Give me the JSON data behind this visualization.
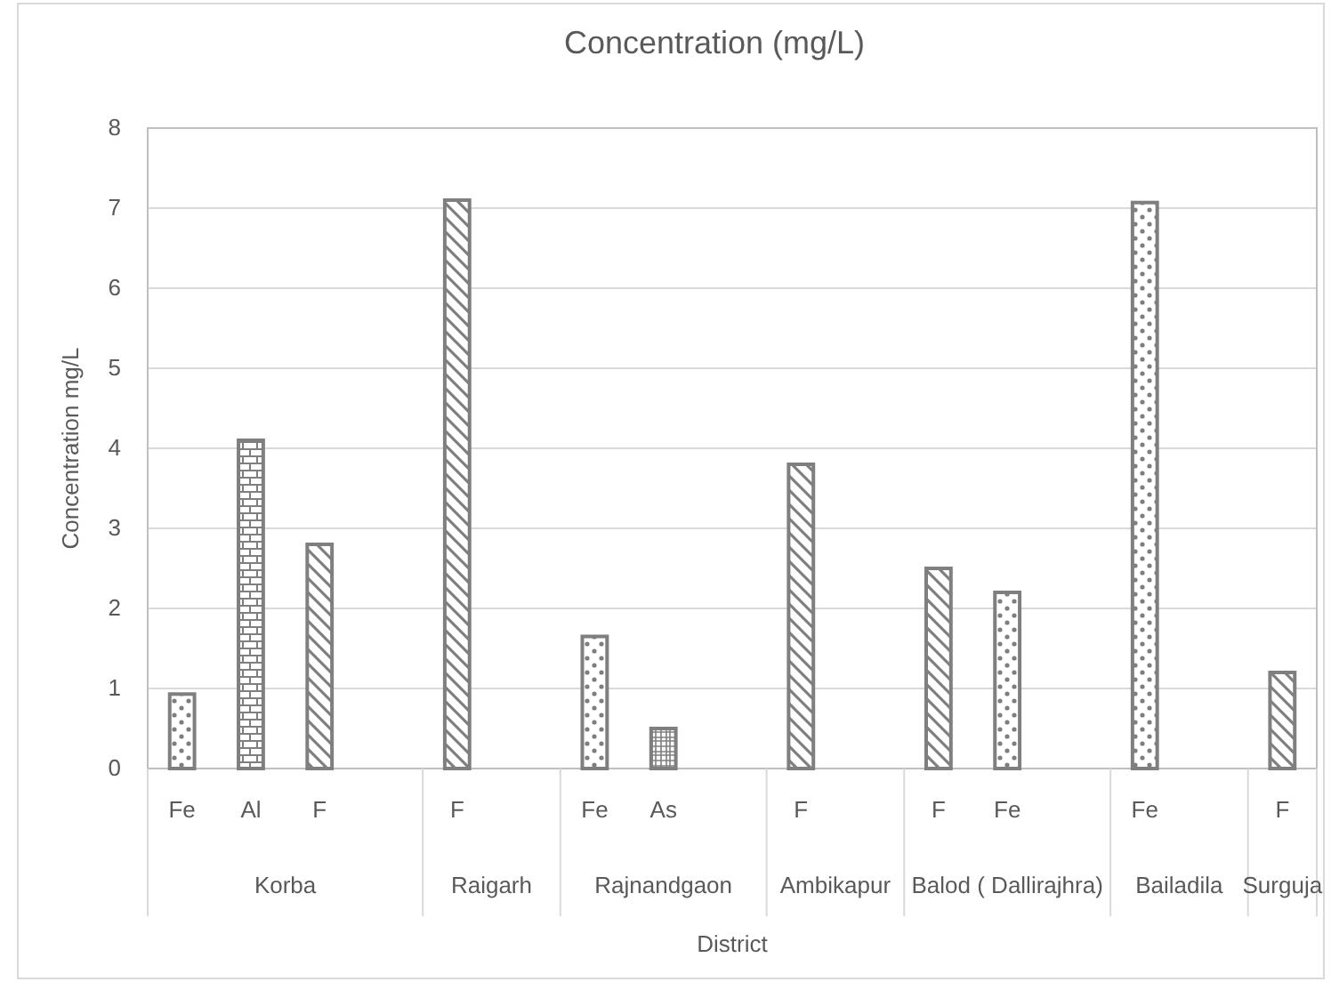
{
  "chart_data": {
    "type": "bar",
    "title": "Concentration (mg/L)",
    "xlabel": "District",
    "ylabel": "Concentration mg/L",
    "categories": [
      "Fe",
      "Al",
      "F",
      null,
      "F",
      null,
      "Fe",
      "As",
      null,
      "F",
      null,
      "F",
      "Fe",
      null,
      "Fe",
      null,
      "F"
    ],
    "series": [
      {
        "color": "#7f7f7f",
        "values": [
          0.93,
          null,
          null,
          null,
          null,
          null,
          1.65,
          null,
          null,
          null,
          null,
          null,
          2.2,
          null,
          7.07,
          null,
          null
        ]
      },
      {
        "color": "#7f7f7f",
        "values": [
          null,
          4.1,
          null,
          null,
          null,
          null,
          null,
          null,
          null,
          null,
          null,
          null,
          null,
          null,
          null,
          null,
          null
        ]
      },
      {
        "color": "#7f7f7f",
        "values": [
          null,
          null,
          2.8,
          null,
          7.1,
          null,
          null,
          null,
          null,
          3.8,
          null,
          2.5,
          null,
          null,
          null,
          null,
          1.2
        ]
      },
      {
        "color": "#7f7f7f",
        "values": [
          null,
          null,
          null,
          null,
          null,
          null,
          null,
          0.5,
          null,
          null,
          null,
          null,
          null,
          null,
          null,
          null,
          null
        ]
      }
    ],
    "annotations": [
      "Korba",
      "Raigarh",
      "Rajnandgaon",
      "Ambikapur",
      "Balod ( Dallirajhra)",
      "Bailadila",
      "Surguja"
    ],
    "ylim": [
      0,
      8
    ],
    "yticks": [
      0,
      1,
      2,
      3,
      4,
      5,
      6,
      7,
      8
    ],
    "grid": "y"
  }
}
